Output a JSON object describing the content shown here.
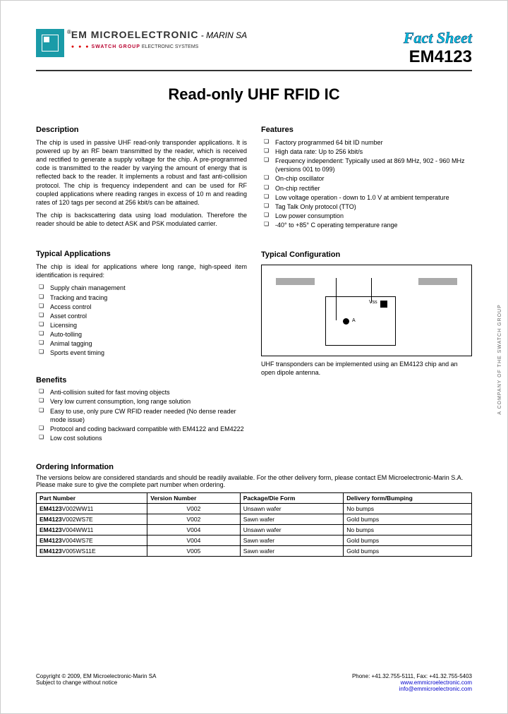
{
  "header": {
    "company": "EM MICROELECTRONIC",
    "marin": " - MARIN SA",
    "swatch_brand": "SWATCH GROUP",
    "swatch_suffix": " ELECTRONIC SYSTEMS",
    "factsheet": "Fact Sheet",
    "partno": "EM4123"
  },
  "title": "Read-only UHF RFID IC",
  "description": {
    "heading": "Description",
    "text": "The chip is used in passive UHF read-only transponder applications. It is powered up by an RF beam transmitted by the reader, which is received and rectified to generate a supply voltage for the chip. A pre-programmed code is transmitted to the reader by varying the amount of energy that is reflected back to the reader. It implements a robust and fast anti-collision protocol. The chip is frequency independent and can be used for RF coupled applications where reading ranges in excess of 10 m and reading rates of 120 tags per second at 256 kbit/s can be attained.\nThe chip is backscattering data using load modulation. Therefore the reader should be able to detect ASK and PSK modulated carrier."
  },
  "features": {
    "heading": "Features",
    "items": [
      "Factory programmed 64 bit ID number",
      "High data rate: Up to 256 kbit/s",
      "Frequency independent: Typically used at 869 MHz, 902 - 960 MHz (versions 001 to 099)",
      "On-chip oscillator",
      "On-chip rectifier",
      "Low voltage operation - down to 1.0 V at ambient temperature",
      "Tag Talk Only protocol (TTO)",
      "Low power consumption",
      "-40° to +85° C operating temperature range"
    ]
  },
  "applications": {
    "heading": "Typical Applications",
    "intro": "The chip is ideal for applications where long range, high-speed item identification is required:",
    "items": [
      "Supply chain management",
      "Tracking and tracing",
      "Access control",
      "Asset control",
      "Licensing",
      "Auto-tolling",
      "Animal tagging",
      "Sports event timing"
    ]
  },
  "benefits": {
    "heading": "Benefits",
    "items": [
      "Anti-collision suited for fast moving objects",
      "Very low current consumption, long range solution",
      "Easy to use, only pure CW RFID reader needed (No dense reader mode issue)",
      "Protocol and coding backward compatible with EM4122 and EM4222",
      "Low cost solutions"
    ]
  },
  "config": {
    "heading": "Typical Configuration",
    "vss": "Vss",
    "a": "A",
    "caption": "UHF transponders can be implemented using an EM4123 chip and an open dipole antenna."
  },
  "ordering": {
    "heading": "Ordering Information",
    "intro": "The versions below are considered standards and should be readily available. For the other delivery form, please contact EM Microelectronic-Marin S.A. Please make sure to give the complete part number when ordering.",
    "columns": [
      "Part Number",
      "Version Number",
      "Package/Die Form",
      "Delivery form/Bumping"
    ],
    "rows": [
      {
        "pn_bold": "EM4123",
        "pn_rest": "V002WW11",
        "ver": "V002",
        "pkg": "Unsawn wafer",
        "del": "No bumps"
      },
      {
        "pn_bold": "EM4123",
        "pn_rest": "V002WS7E",
        "ver": "V002",
        "pkg": "Sawn wafer",
        "del": "Gold bumps"
      },
      {
        "pn_bold": "EM4123",
        "pn_rest": "V004WW11",
        "ver": "V004",
        "pkg": "Unsawn wafer",
        "del": "No bumps"
      },
      {
        "pn_bold": "EM4123",
        "pn_rest": "V004WS7E",
        "ver": "V004",
        "pkg": "Sawn wafer",
        "del": "Gold bumps"
      },
      {
        "pn_bold": "EM4123",
        "pn_rest": "V005WS11E",
        "ver": "V005",
        "pkg": "Sawn wafer",
        "del": "Gold bumps"
      }
    ]
  },
  "footer": {
    "copyright": "Copyright © 2009, EM Microelectronic-Marin SA",
    "subject": "Subject to change without notice",
    "phone": "Phone: +41.32.755-5111, Fax: +41.32.755-5403",
    "web": "www.emmicroelectronic.com",
    "email": "info@emmicroelectronic.com"
  },
  "side": "A COMPANY OF THE SWATCH GROUP"
}
